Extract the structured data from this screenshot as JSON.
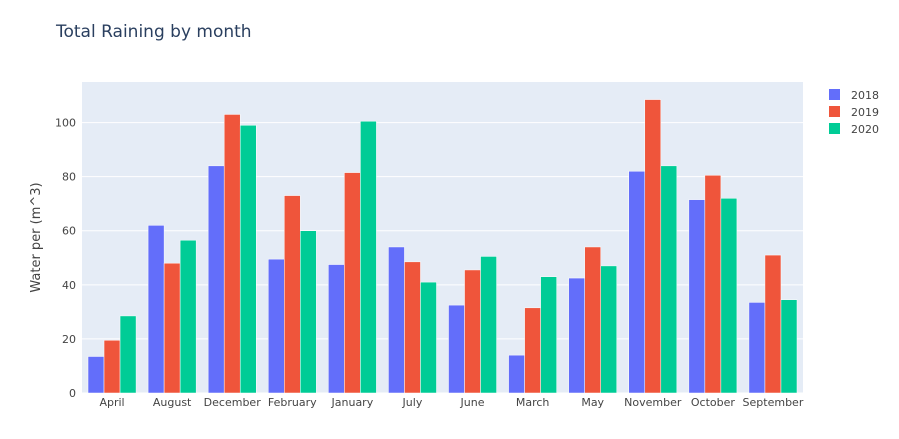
{
  "chart_data": {
    "type": "bar",
    "title": "Total Raining by month",
    "xlabel": "",
    "ylabel": "Water per (m^3)",
    "categories": [
      "April",
      "August",
      "December",
      "February",
      "January",
      "July",
      "June",
      "March",
      "May",
      "November",
      "October",
      "September"
    ],
    "series": [
      {
        "name": "2018",
        "color": "#636efa",
        "values": [
          13.5,
          62,
          84,
          49.5,
          47.5,
          54,
          32.5,
          14,
          42.5,
          82,
          71.5,
          33.5
        ]
      },
      {
        "name": "2019",
        "color": "#ef553b",
        "values": [
          19.5,
          48,
          103,
          73,
          81.5,
          48.5,
          45.5,
          31.5,
          54,
          108.5,
          80.5,
          51
        ]
      },
      {
        "name": "2020",
        "color": "#00cc96",
        "values": [
          28.5,
          56.5,
          99,
          60,
          100.5,
          41,
          50.5,
          43,
          47,
          84,
          72,
          34.5
        ]
      }
    ],
    "ylim": [
      0,
      115
    ],
    "yticks": [
      0,
      20,
      40,
      60,
      80,
      100
    ],
    "grid": true,
    "legend_position": "top-right",
    "plot_background": "#e5ecf6"
  }
}
